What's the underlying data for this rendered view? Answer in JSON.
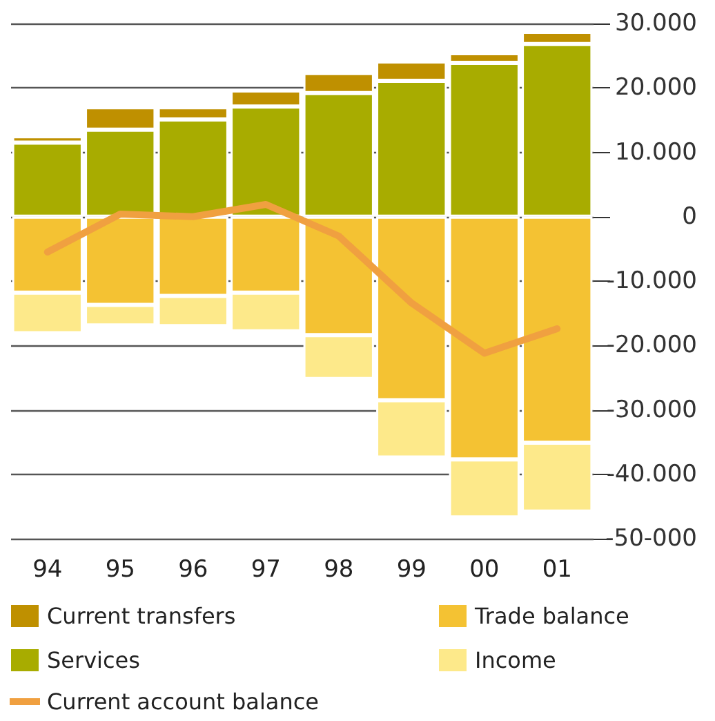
{
  "chart_data": {
    "type": "bar",
    "stacked": true,
    "categories": [
      "94",
      "95",
      "96",
      "97",
      "98",
      "99",
      "00",
      "01"
    ],
    "series": [
      {
        "name": "Services",
        "color": "#a8ac00",
        "values": [
          11500,
          13500,
          15100,
          17100,
          19200,
          21100,
          23900,
          26800
        ]
      },
      {
        "name": "Current transfers",
        "color": "#bf9000",
        "values": [
          1000,
          3500,
          1900,
          2500,
          3100,
          3000,
          1500,
          1900
        ]
      },
      {
        "name": "Trade balance",
        "color": "#f4c233",
        "values": [
          -11800,
          -13700,
          -12300,
          -11800,
          -18400,
          -28500,
          -37700,
          -35100
        ]
      },
      {
        "name": "Income",
        "color": "#fde98a",
        "values": [
          -6300,
          -3200,
          -4700,
          -6000,
          -6800,
          -8900,
          -9000,
          -10700
        ]
      },
      {
        "name": "Current account balance",
        "type": "line",
        "color": "#f0a040",
        "values": [
          -5500,
          400,
          0,
          1900,
          -3000,
          -13400,
          -21200,
          -17400
        ]
      }
    ],
    "ylim": [
      -50000,
      30000
    ],
    "yticks": [
      {
        "value": -50000,
        "label": "-50-000"
      },
      {
        "value": -40000,
        "label": "-40.000"
      },
      {
        "value": -30000,
        "label": "-30.000"
      },
      {
        "value": -20000,
        "label": "-20.000"
      },
      {
        "value": -10000,
        "label": "-10.000"
      },
      0,
      {
        "value": 10000,
        "label": "10.000"
      },
      {
        "value": 20000,
        "label": "20.000"
      },
      {
        "value": 30000,
        "label": "30.000"
      }
    ],
    "grid": "y",
    "legend": "bottom",
    "marker": "none",
    "line_style": "solid"
  }
}
